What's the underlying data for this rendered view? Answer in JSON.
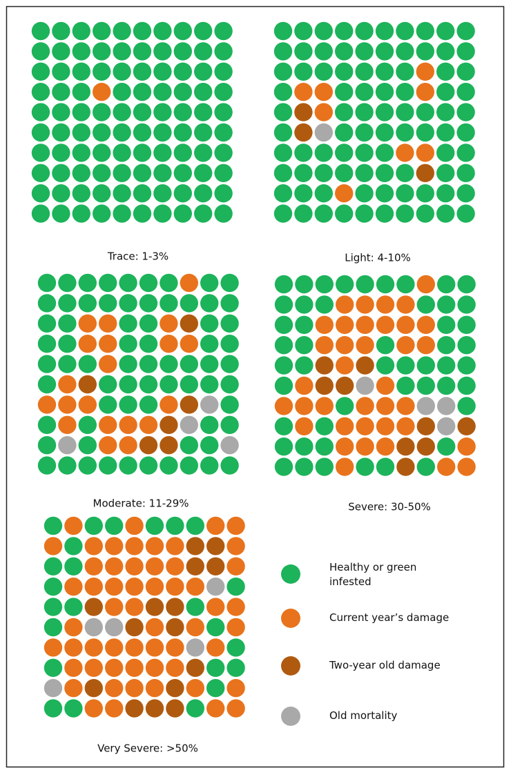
{
  "panels": [
    {
      "label": "Trace: 1-3%",
      "grid": [
        [
          0,
          0,
          0,
          0,
          0,
          0,
          0,
          0,
          0,
          0
        ],
        [
          0,
          0,
          0,
          0,
          0,
          0,
          0,
          0,
          0,
          0
        ],
        [
          0,
          0,
          0,
          0,
          0,
          0,
          0,
          0,
          0,
          0
        ],
        [
          0,
          0,
          0,
          1,
          0,
          0,
          0,
          0,
          0,
          0
        ],
        [
          0,
          0,
          0,
          0,
          0,
          0,
          0,
          0,
          0,
          0
        ],
        [
          0,
          0,
          0,
          0,
          0,
          0,
          0,
          0,
          0,
          0
        ],
        [
          0,
          0,
          0,
          0,
          0,
          0,
          0,
          0,
          0,
          0
        ],
        [
          0,
          0,
          0,
          0,
          0,
          0,
          0,
          0,
          0,
          0
        ],
        [
          0,
          0,
          0,
          0,
          0,
          0,
          0,
          0,
          0,
          0
        ],
        [
          0,
          0,
          0,
          0,
          0,
          0,
          0,
          0,
          0,
          0
        ]
      ]
    },
    {
      "label": "Light: 4-10%",
      "grid": [
        [
          0,
          0,
          0,
          0,
          0,
          0,
          0,
          0,
          0,
          0
        ],
        [
          0,
          0,
          0,
          0,
          0,
          0,
          0,
          0,
          0,
          0
        ],
        [
          0,
          0,
          0,
          0,
          0,
          0,
          0,
          1,
          0,
          0
        ],
        [
          0,
          1,
          1,
          0,
          0,
          0,
          0,
          1,
          0,
          0
        ],
        [
          0,
          2,
          1,
          0,
          0,
          0,
          0,
          0,
          0,
          0
        ],
        [
          0,
          2,
          3,
          0,
          0,
          0,
          0,
          0,
          0,
          0
        ],
        [
          0,
          0,
          0,
          0,
          0,
          0,
          1,
          1,
          0,
          0
        ],
        [
          0,
          0,
          0,
          0,
          0,
          0,
          0,
          2,
          0,
          0
        ],
        [
          0,
          0,
          0,
          1,
          0,
          0,
          0,
          0,
          0,
          0
        ],
        [
          0,
          0,
          0,
          0,
          0,
          0,
          0,
          0,
          0,
          0
        ]
      ]
    },
    {
      "label": "Moderate: 11-29%",
      "grid": [
        [
          0,
          0,
          0,
          0,
          0,
          0,
          0,
          1,
          0,
          0
        ],
        [
          0,
          0,
          0,
          0,
          0,
          0,
          0,
          0,
          0,
          0
        ],
        [
          0,
          0,
          1,
          1,
          0,
          0,
          1,
          2,
          0,
          0
        ],
        [
          0,
          0,
          1,
          1,
          0,
          0,
          1,
          1,
          0,
          0
        ],
        [
          0,
          0,
          0,
          1,
          0,
          0,
          0,
          0,
          0,
          0
        ],
        [
          0,
          1,
          2,
          0,
          0,
          0,
          0,
          0,
          0,
          0
        ],
        [
          1,
          1,
          1,
          0,
          0,
          0,
          1,
          2,
          3,
          0
        ],
        [
          0,
          1,
          0,
          1,
          1,
          1,
          2,
          3,
          0,
          0
        ],
        [
          0,
          3,
          0,
          1,
          1,
          2,
          2,
          0,
          0,
          3
        ],
        [
          0,
          0,
          0,
          0,
          0,
          0,
          0,
          0,
          0,
          0
        ]
      ]
    },
    {
      "label": "Severe: 30-50%",
      "grid": [
        [
          0,
          0,
          0,
          0,
          0,
          0,
          0,
          1,
          0,
          0
        ],
        [
          0,
          0,
          0,
          1,
          1,
          1,
          1,
          0,
          0,
          0
        ],
        [
          0,
          0,
          1,
          1,
          1,
          1,
          1,
          1,
          0,
          0
        ],
        [
          0,
          0,
          1,
          1,
          1,
          0,
          1,
          1,
          0,
          0
        ],
        [
          0,
          0,
          2,
          1,
          2,
          0,
          0,
          0,
          0,
          0
        ],
        [
          0,
          1,
          2,
          2,
          3,
          1,
          0,
          0,
          0,
          0
        ],
        [
          1,
          1,
          1,
          0,
          1,
          1,
          1,
          3,
          3,
          0
        ],
        [
          0,
          1,
          0,
          1,
          1,
          1,
          1,
          2,
          3,
          2
        ],
        [
          0,
          0,
          0,
          1,
          1,
          1,
          2,
          2,
          0,
          1
        ],
        [
          0,
          0,
          0,
          1,
          0,
          0,
          2,
          0,
          1,
          1
        ]
      ]
    },
    {
      "label": "Very Severe: >50%",
      "grid": [
        [
          0,
          1,
          0,
          0,
          1,
          0,
          0,
          0,
          1,
          1
        ],
        [
          1,
          0,
          1,
          1,
          1,
          1,
          1,
          2,
          2,
          1
        ],
        [
          0,
          0,
          1,
          1,
          1,
          1,
          1,
          2,
          2,
          1
        ],
        [
          0,
          1,
          1,
          1,
          1,
          1,
          1,
          1,
          3,
          0
        ],
        [
          0,
          0,
          2,
          1,
          1,
          2,
          2,
          0,
          1,
          1
        ],
        [
          0,
          1,
          3,
          3,
          2,
          1,
          2,
          1,
          0,
          1
        ],
        [
          1,
          1,
          1,
          1,
          1,
          1,
          1,
          3,
          1,
          0
        ],
        [
          0,
          1,
          1,
          1,
          1,
          1,
          1,
          2,
          0,
          0
        ],
        [
          3,
          1,
          2,
          1,
          1,
          1,
          2,
          1,
          0,
          1
        ],
        [
          0,
          0,
          1,
          1,
          2,
          2,
          2,
          0,
          1,
          1
        ]
      ]
    }
  ],
  "legend": [
    {
      "label": "Healthy or green infested",
      "color": "#1cb35a"
    },
    {
      "label": "Current year’s damage",
      "color": "#e8731c"
    },
    {
      "label": "Two-year old damage",
      "color": "#b05a10"
    },
    {
      "label": "Old mortality",
      "color": "#a9a9a9"
    }
  ]
}
